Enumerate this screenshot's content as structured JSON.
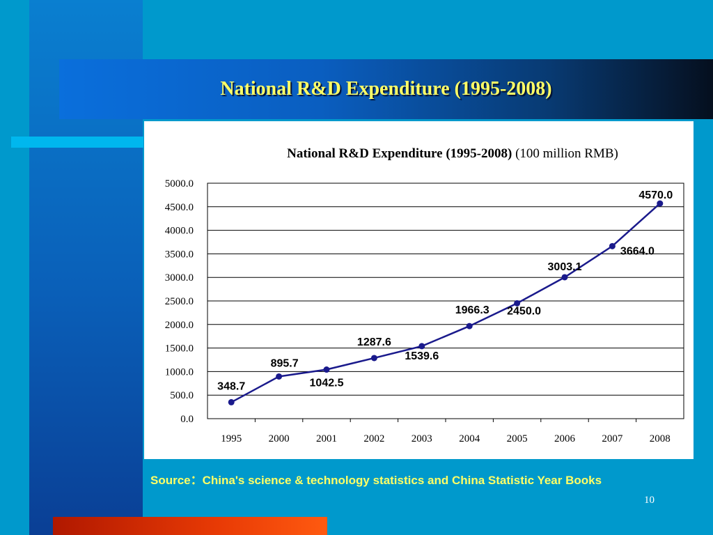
{
  "slide": {
    "title": "National R&D Expenditure (1995-2008)",
    "source_label": "Source：",
    "source_text": "China's science & technology statistics and China Statistic Year Books",
    "page_number": "10"
  },
  "colors": {
    "background": "#0099cc",
    "title_text": "#ffff66",
    "series_line": "#1a1a8c",
    "bottom_bar": "#e83a05"
  },
  "chart_data": {
    "type": "line",
    "title": "National R&D Expenditure (1995-2008)",
    "title_unit": "(100 million RMB)",
    "categories": [
      "1995",
      "2000",
      "2001",
      "2002",
      "2003",
      "2004",
      "2005",
      "2006",
      "2007",
      "2008"
    ],
    "series": [
      {
        "values": [
          348.7,
          895.7,
          1042.5,
          1287.6,
          1539.6,
          1966.3,
          2450.0,
          3003.1,
          3664.0,
          4570.0
        ]
      }
    ],
    "data_labels": [
      "348.7",
      "895.7",
      "1042.5",
      "1287.6",
      "1539.6",
      "1966.3",
      "2450.0",
      "3003.1",
      "3664.0",
      "4570.0"
    ],
    "ylim": [
      0,
      5000
    ],
    "yticks": [
      "0.0",
      "500.0",
      "1000.0",
      "1500.0",
      "2000.0",
      "2500.0",
      "3000.0",
      "3500.0",
      "4000.0",
      "4500.0",
      "5000.0"
    ],
    "grid": true,
    "legend": "none"
  }
}
